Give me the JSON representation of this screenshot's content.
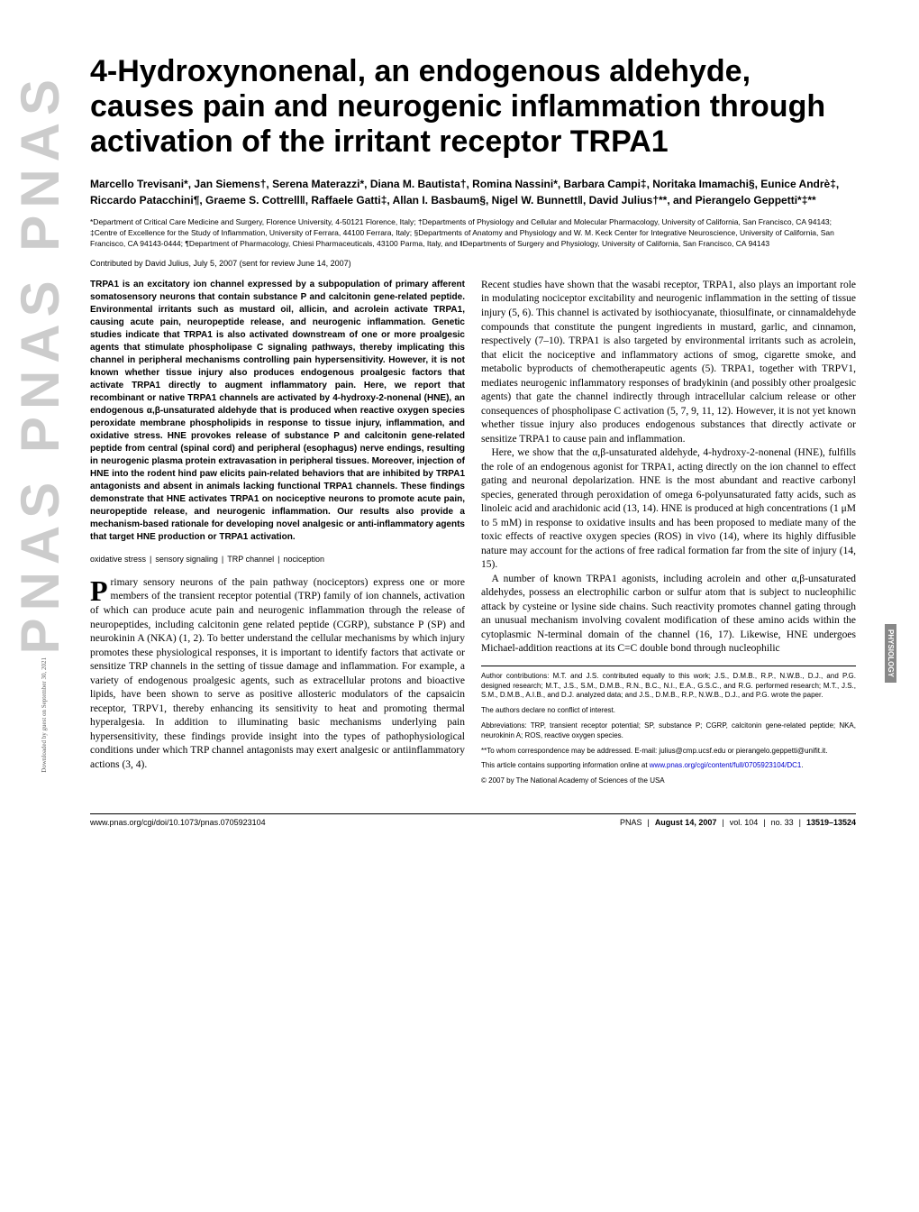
{
  "title": "4-Hydroxynonenal, an endogenous aldehyde, causes pain and neurogenic inflammation through activation of the irritant receptor TRPA1",
  "authors": "Marcello Trevisani*, Jan Siemens†, Serena Materazzi*, Diana M. Bautista†, Romina Nassini*, Barbara Campi‡, Noritaka Imamachi§, Eunice Andrè‡, Riccardo Patacchini¶, Graeme S. Cottrell‖, Raffaele Gatti‡, Allan I. Basbaum§, Nigel W. Bunnett‖, David Julius†**, and Pierangelo Geppetti*‡**",
  "affiliations": "*Department of Critical Care Medicine and Surgery, Florence University, 4-50121 Florence, Italy; †Departments of Physiology and Cellular and Molecular Pharmacology, University of California, San Francisco, CA 94143; ‡Centre of Excellence for the Study of Inflammation, University of Ferrara, 44100 Ferrara, Italy; §Departments of Anatomy and Physiology and W. M. Keck Center for Integrative Neuroscience, University of California, San Francisco, CA 94143-0444; ¶Department of Pharmacology, Chiesi Pharmaceuticals, 43100 Parma, Italy, and ‖Departments of Surgery and Physiology, University of California, San Francisco, CA 94143",
  "contributed": "Contributed by David Julius, July 5, 2007 (sent for review June 14, 2007)",
  "abstract": "TRPA1 is an excitatory ion channel expressed by a subpopulation of primary afferent somatosensory neurons that contain substance P and calcitonin gene-related peptide. Environmental irritants such as mustard oil, allicin, and acrolein activate TRPA1, causing acute pain, neuropeptide release, and neurogenic inflammation. Genetic studies indicate that TRPA1 is also activated downstream of one or more proalgesic agents that stimulate phospholipase C signaling pathways, thereby implicating this channel in peripheral mechanisms controlling pain hypersensitivity. However, it is not known whether tissue injury also produces endogenous proalgesic factors that activate TRPA1 directly to augment inflammatory pain. Here, we report that recombinant or native TRPA1 channels are activated by 4-hydroxy-2-nonenal (HNE), an endogenous α,β-unsaturated aldehyde that is produced when reactive oxygen species peroxidate membrane phospholipids in response to tissue injury, inflammation, and oxidative stress. HNE provokes release of substance P and calcitonin gene-related peptide from central (spinal cord) and peripheral (esophagus) nerve endings, resulting in neurogenic plasma protein extravasation in peripheral tissues. Moreover, injection of HNE into the rodent hind paw elicits pain-related behaviors that are inhibited by TRPA1 antagonists and absent in animals lacking functional TRPA1 channels. These findings demonstrate that HNE activates TRPA1 on nociceptive neurons to promote acute pain, neuropeptide release, and neurogenic inflammation. Our results also provide a mechanism-based rationale for developing novel analgesic or anti-inflammatory agents that target HNE production or TRPA1 activation.",
  "keywords": [
    "oxidative stress",
    "sensory signaling",
    "TRP channel",
    "nociception"
  ],
  "body_left_first_letter": "P",
  "body_left_first": "rimary sensory neurons of the pain pathway (nociceptors) express one or more members of the transient receptor potential (TRP) family of ion channels, activation of which can produce acute pain and neurogenic inflammation through the release of neuropeptides, including calcitonin gene related peptide (CGRP), substance P (SP) and neurokinin A (NKA) (1, 2). To better understand the cellular mechanisms by which injury promotes these physiological responses, it is important to identify factors that activate or sensitize TRP channels in the setting of tissue damage and inflammation. For example, a variety of endogenous proalgesic agents, such as extracellular protons and bioactive lipids, have been shown to serve as positive allosteric modulators of the capsaicin receptor, TRPV1, thereby enhancing its sensitivity to heat and promoting thermal hyperalgesia. In addition to illuminating basic mechanisms underlying pain hypersensitivity, these findings provide insight into the types of pathophysiological conditions under which TRP channel antagonists may exert analgesic or antiinflammatory actions (3, 4).",
  "body_right_p1": "Recent studies have shown that the wasabi receptor, TRPA1, also plays an important role in modulating nociceptor excitability and neurogenic inflammation in the setting of tissue injury (5, 6). This channel is activated by isothiocyanate, thiosulfinate, or cinnamaldehyde compounds that constitute the pungent ingredients in mustard, garlic, and cinnamon, respectively (7–10). TRPA1 is also targeted by environmental irritants such as acrolein, that elicit the nociceptive and inflammatory actions of smog, cigarette smoke, and metabolic byproducts of chemotherapeutic agents (5). TRPA1, together with TRPV1, mediates neurogenic inflammatory responses of bradykinin (and possibly other proalgesic agents) that gate the channel indirectly through intracellular calcium release or other consequences of phospholipase C activation (5, 7, 9, 11, 12). However, it is not yet known whether tissue injury also produces endogenous substances that directly activate or sensitize TRPA1 to cause pain and inflammation.",
  "body_right_p2": "Here, we show that the α,β-unsaturated aldehyde, 4-hydroxy-2-nonenal (HNE), fulfills the role of an endogenous agonist for TRPA1, acting directly on the ion channel to effect gating and neuronal depolarization. HNE is the most abundant and reactive carbonyl species, generated through peroxidation of omega 6-polyunsaturated fatty acids, such as linoleic acid and arachidonic acid (13, 14). HNE is produced at high concentrations (1 μM to 5 mM) in response to oxidative insults and has been proposed to mediate many of the toxic effects of reactive oxygen species (ROS) in vivo (14), where its highly diffusible nature may account for the actions of free radical formation far from the site of injury (14, 15).",
  "body_right_p3": "A number of known TRPA1 agonists, including acrolein and other α,β-unsaturated aldehydes, possess an electrophilic carbon or sulfur atom that is subject to nucleophilic attack by cysteine or lysine side chains. Such reactivity promotes channel gating through an unusual mechanism involving covalent modification of these amino acids within the cytoplasmic N-terminal domain of the channel (16, 17). Likewise, HNE undergoes Michael-addition reactions at its C=C double bond through nucleophilic",
  "footnotes": {
    "contrib": "Author contributions: M.T. and J.S. contributed equally to this work; J.S., D.M.B., R.P., N.W.B., D.J., and P.G. designed research; M.T., J.S., S.M., D.M.B., R.N., B.C., N.I., E.A., G.S.C., and R.G. performed research; M.T., J.S., S.M., D.M.B., A.I.B., and D.J. analyzed data; and J.S., D.M.B., R.P., N.W.B., D.J., and P.G. wrote the paper.",
    "conflict": "The authors declare no conflict of interest.",
    "abbr": "Abbreviations: TRP, transient receptor potential; SP, substance P; CGRP, calcitonin gene-related peptide; NKA, neurokinin A; ROS, reactive oxygen species.",
    "corr": "**To whom correspondence may be addressed. E-mail: julius@cmp.ucsf.edu or pierangelo.geppetti@unifit.it.",
    "si_pre": "This article contains supporting information online at ",
    "si_link": "www.pnas.org/cgi/content/full/0705923104/DC1",
    "copyright": "© 2007 by The National Academy of Sciences of the USA"
  },
  "sidebar_label": "PHYSIOLOGY",
  "download_note": "Downloaded by guest on September 30, 2021",
  "footer": {
    "doi": "www.pnas.org/cgi/doi/10.1073/pnas.0705923104",
    "journal": "PNAS",
    "date": "August 14, 2007",
    "vol": "vol. 104",
    "no": "no. 33",
    "pages": "13519–13524"
  },
  "watermark": "PNAS PNAS PNAS"
}
